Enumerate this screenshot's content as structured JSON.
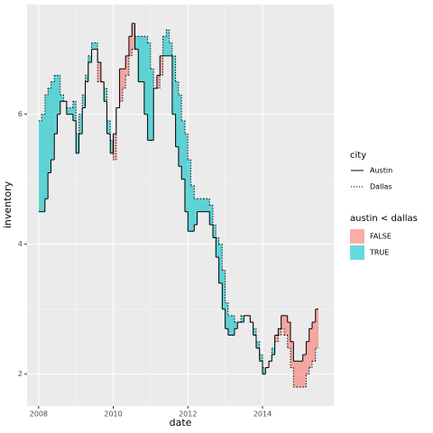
{
  "chart_data": {
    "type": "step",
    "x_label": "date",
    "y_label": "inventory",
    "xlim": [
      2007.69,
      2015.91
    ],
    "ylim": [
      1.51,
      7.69
    ],
    "xticks": [
      2008,
      2010,
      2012,
      2014
    ],
    "yticks": [
      2,
      4,
      6
    ],
    "grid": true,
    "x": [
      2008,
      2008.08,
      2008.17,
      2008.25,
      2008.33,
      2008.42,
      2008.5,
      2008.58,
      2008.67,
      2008.75,
      2008.83,
      2008.92,
      2009,
      2009.08,
      2009.17,
      2009.25,
      2009.33,
      2009.42,
      2009.5,
      2009.58,
      2009.67,
      2009.75,
      2009.83,
      2009.92,
      2010,
      2010.08,
      2010.17,
      2010.25,
      2010.33,
      2010.42,
      2010.5,
      2010.58,
      2010.67,
      2010.75,
      2010.83,
      2010.92,
      2011,
      2011.08,
      2011.17,
      2011.25,
      2011.33,
      2011.42,
      2011.5,
      2011.58,
      2011.67,
      2011.75,
      2011.83,
      2011.92,
      2012,
      2012.08,
      2012.17,
      2012.25,
      2012.33,
      2012.42,
      2012.5,
      2012.58,
      2012.67,
      2012.75,
      2012.83,
      2012.92,
      2013,
      2013.08,
      2013.17,
      2013.25,
      2013.33,
      2013.42,
      2013.5,
      2013.58,
      2013.67,
      2013.75,
      2013.83,
      2013.92,
      2014,
      2014.08,
      2014.17,
      2014.25,
      2014.33,
      2014.42,
      2014.5,
      2014.58,
      2014.67,
      2014.75,
      2014.83,
      2014.92,
      2015,
      2015.08,
      2015.17,
      2015.25,
      2015.33,
      2015.42,
      2015.5
    ],
    "legend_title": "city",
    "series": [
      {
        "name": "Austin",
        "linetype": "solid",
        "color": "#000000",
        "values": [
          4.5,
          4.5,
          4.7,
          5.1,
          5.3,
          5.7,
          6.0,
          6.2,
          6.2,
          6.0,
          6.0,
          5.9,
          5.4,
          5.7,
          6.1,
          6.5,
          6.8,
          7.0,
          7.0,
          6.8,
          6.5,
          6.2,
          5.7,
          5.4,
          5.7,
          6.1,
          6.7,
          6.7,
          6.9,
          7.2,
          7.4,
          7.0,
          6.5,
          6.5,
          6.0,
          5.6,
          5.6,
          6.4,
          6.6,
          6.9,
          6.9,
          6.9,
          6.9,
          6.0,
          5.5,
          5.2,
          5.0,
          4.5,
          4.2,
          4.2,
          4.3,
          4.5,
          4.5,
          4.5,
          4.5,
          4.3,
          4.1,
          3.8,
          3.4,
          3.0,
          2.7,
          2.6,
          2.6,
          2.7,
          2.8,
          2.8,
          2.9,
          2.9,
          2.8,
          2.6,
          2.4,
          2.2,
          2.0,
          2.1,
          2.2,
          2.3,
          2.6,
          2.7,
          2.9,
          2.9,
          2.8,
          2.5,
          2.2,
          2.2,
          2.2,
          2.3,
          2.5,
          2.7,
          2.8,
          3.0,
          3.0
        ]
      },
      {
        "name": "Dallas",
        "linetype": "dotted",
        "color": "#000000",
        "values": [
          5.9,
          6.0,
          6.3,
          6.4,
          6.5,
          6.6,
          6.6,
          6.3,
          6.2,
          6.1,
          6.1,
          6.2,
          5.7,
          6.0,
          6.3,
          6.6,
          6.9,
          7.1,
          7.1,
          6.5,
          6.5,
          6.4,
          5.9,
          5.6,
          5.3,
          6.1,
          6.2,
          6.4,
          6.6,
          6.9,
          7.0,
          7.2,
          7.2,
          7.2,
          7.2,
          7.1,
          6.7,
          6.4,
          6.4,
          6.6,
          7.2,
          7.3,
          7.1,
          6.9,
          6.5,
          6.3,
          5.9,
          5.7,
          5.3,
          4.9,
          4.7,
          4.7,
          4.7,
          4.7,
          4.7,
          4.6,
          4.3,
          4.1,
          4.0,
          3.6,
          3.1,
          2.9,
          2.9,
          2.8,
          2.8,
          2.9,
          2.9,
          2.9,
          2.8,
          2.7,
          2.5,
          2.3,
          2.1,
          2.1,
          2.2,
          2.4,
          2.5,
          2.6,
          2.7,
          2.6,
          2.4,
          2.1,
          1.8,
          1.8,
          1.8,
          1.8,
          2.0,
          2.1,
          2.2,
          2.4,
          2.4
        ]
      }
    ],
    "fill_legend": {
      "title": "austin < dallas",
      "alpha": 0.6,
      "entries": [
        {
          "label": "FALSE",
          "color": "#F8766D"
        },
        {
          "label": "TRUE",
          "color": "#00BFC4"
        }
      ]
    }
  }
}
